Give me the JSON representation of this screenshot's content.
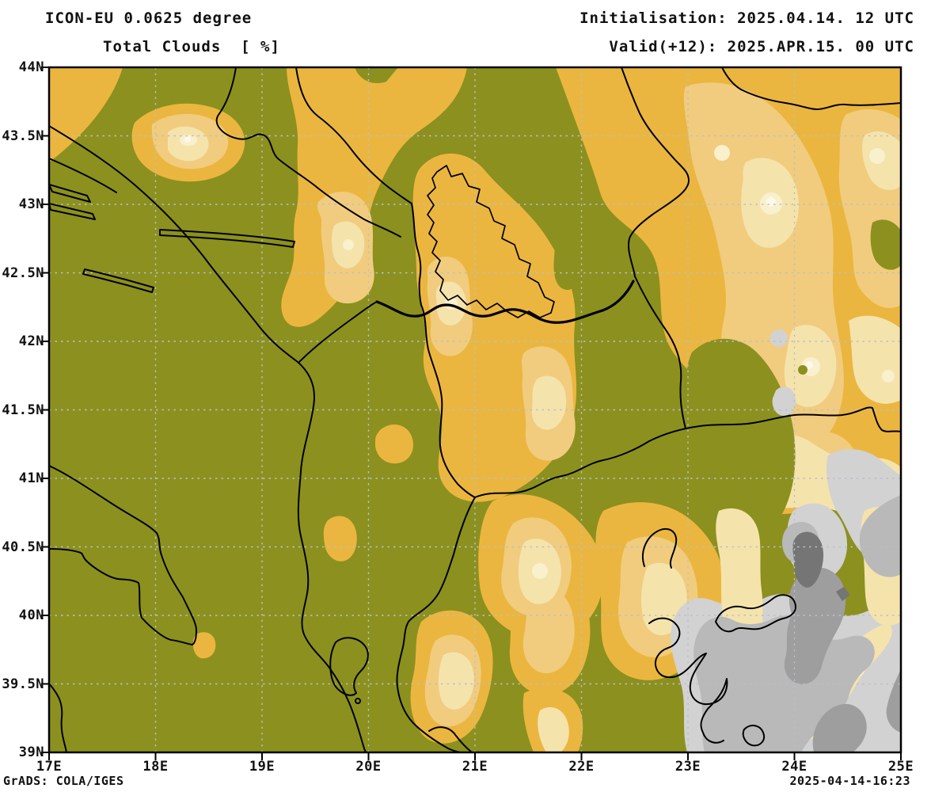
{
  "header": {
    "model_line": "ICON-EU 0.0625 degree",
    "product_line": "Total Clouds  [ %]",
    "init_line": "Initialisation: 2025.04.14. 12 UTC",
    "valid_line": "Valid(+12): 2025.APR.15. 00 UTC"
  },
  "footer": {
    "credit": "GrADS: COLA/IGES",
    "timestamp": "2025-04-14-16:23"
  },
  "map": {
    "lat_range": [
      39,
      44
    ],
    "lon_range": [
      17,
      25
    ],
    "lat_ticks": [
      {
        "label": "44N",
        "value": 44
      },
      {
        "label": "43.5N",
        "value": 43.5
      },
      {
        "label": "43N",
        "value": 43
      },
      {
        "label": "42.5N",
        "value": 42.5
      },
      {
        "label": "42N",
        "value": 42
      },
      {
        "label": "41.5N",
        "value": 41.5
      },
      {
        "label": "41N",
        "value": 41
      },
      {
        "label": "40.5N",
        "value": 40.5
      },
      {
        "label": "40N",
        "value": 40
      },
      {
        "label": "39.5N",
        "value": 39.5
      },
      {
        "label": "39N",
        "value": 39
      }
    ],
    "lon_ticks": [
      {
        "label": "17E",
        "value": 17
      },
      {
        "label": "18E",
        "value": 18
      },
      {
        "label": "19E",
        "value": 19
      },
      {
        "label": "20E",
        "value": 20
      },
      {
        "label": "21E",
        "value": 21
      },
      {
        "label": "22E",
        "value": 22
      },
      {
        "label": "23E",
        "value": 23
      },
      {
        "label": "24E",
        "value": 24
      },
      {
        "label": "25E",
        "value": 25
      }
    ],
    "palette": {
      "clear_olive": "#8C901F",
      "cloud_orange": "#EBB63F",
      "cloud_tan": "#F1CC7E",
      "cloud_cream": "#F5E3AC",
      "cloud_pale": "#F9F0CE",
      "cloud_near_white": "#FCF9EA",
      "cloud_gray_light": "#D2D2D2",
      "cloud_gray_medium": "#B9B9B9",
      "cloud_gray_dark": "#9E9E9E",
      "cloud_gray_darkest": "#757575",
      "border_black": "#000000",
      "grid_dash": "#B6C0CA"
    }
  }
}
